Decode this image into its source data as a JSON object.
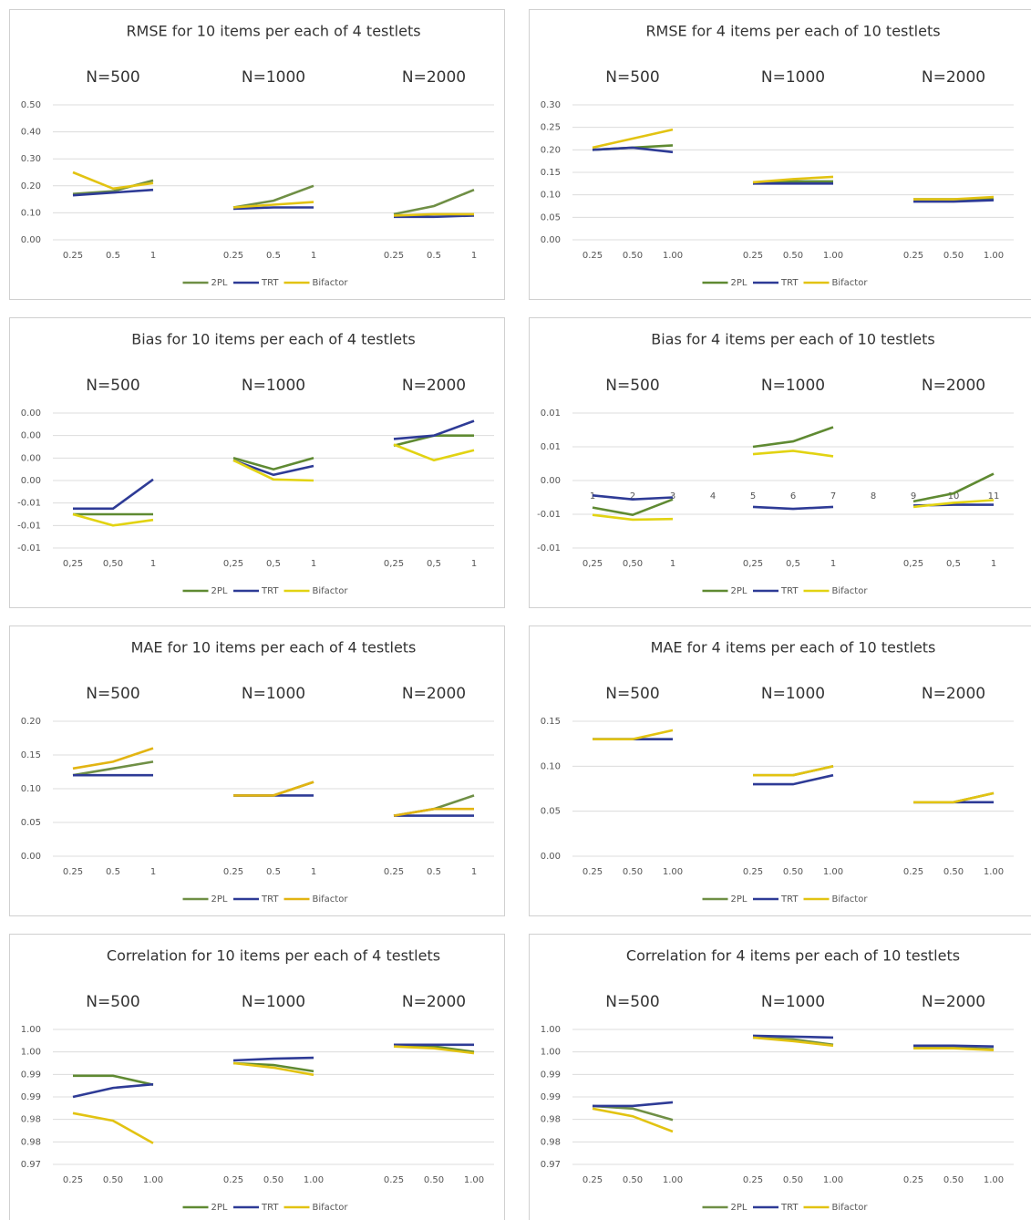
{
  "chart_data": [
    {
      "type": "line",
      "title": "RMSE for 10 items per each of 4 testlets",
      "groups": [
        "N=500",
        "N=1000",
        "N=2000"
      ],
      "categories": [
        "0.25",
        "0.5",
        "1",
        "0.25",
        "0.5",
        "1",
        "0.25",
        "0.5",
        "1"
      ],
      "ylim": [
        0,
        0.5
      ],
      "yticks": [
        {
          "value": 0,
          "label": "0.00"
        },
        {
          "value": 0.1,
          "label": "0.10"
        },
        {
          "value": 0.2,
          "label": "0.20"
        },
        {
          "value": 0.3,
          "label": "0.30"
        },
        {
          "value": 0.4,
          "label": "0.40"
        },
        {
          "value": 0.5,
          "label": "0.50"
        }
      ],
      "grid": true,
      "series": [
        {
          "name": "2PL",
          "color": "#6f8f45",
          "values": [
            0.17,
            0.18,
            0.22,
            0.12,
            0.145,
            0.2,
            0.095,
            0.125,
            0.185
          ]
        },
        {
          "name": "TRT",
          "color": "#2e3b96",
          "values": [
            0.165,
            0.175,
            0.185,
            0.115,
            0.12,
            0.12,
            0.085,
            0.085,
            0.09
          ]
        },
        {
          "name": "Bifactor",
          "color": "#e2c312",
          "values": [
            0.25,
            0.19,
            0.21,
            0.12,
            0.13,
            0.14,
            0.09,
            0.095,
            0.095
          ]
        }
      ]
    },
    {
      "type": "line",
      "title": "RMSE for 4 items per each of 10 testlets",
      "groups": [
        "N=500",
        "N=1000",
        "N=2000"
      ],
      "categories": [
        "0.25",
        "0.50",
        "1.00",
        "0.25",
        "0.50",
        "1.00",
        "0.25",
        "0.50",
        "1.00"
      ],
      "ylim": [
        0,
        0.3
      ],
      "yticks": [
        {
          "value": 0,
          "label": "0.00"
        },
        0.05,
        {
          "value": 0.1,
          "label": "0.10"
        },
        0.15,
        {
          "value": 0.2,
          "label": "0.20"
        },
        0.25,
        {
          "value": 0.3,
          "label": "0.30"
        }
      ],
      "grid": true,
      "series": [
        {
          "name": "2PL",
          "color": "#5f8a32",
          "values": [
            0.2,
            0.205,
            0.21,
            0.125,
            0.13,
            0.13,
            0.09,
            0.09,
            0.09
          ]
        },
        {
          "name": "TRT",
          "color": "#2e3b96",
          "values": [
            0.2,
            0.205,
            0.195,
            0.125,
            0.125,
            0.125,
            0.085,
            0.085,
            0.088
          ]
        },
        {
          "name": "Bifactor",
          "color": "#e2c312",
          "values": [
            0.205,
            0.225,
            0.245,
            0.128,
            0.135,
            0.14,
            0.09,
            0.09,
            0.095
          ]
        }
      ]
    },
    {
      "type": "line",
      "title": "Bias for 10 items per each of 4 testlets",
      "groups": [
        "N=500",
        "N=1000",
        "N=2000"
      ],
      "categories": [
        "0,25",
        "0,50",
        "1",
        "0,25",
        "0,5",
        "1",
        "0,25",
        "0,5",
        "1"
      ],
      "ylim": [
        -0.01,
        0.002
      ],
      "yticks": [
        {
          "value": -0.01,
          "label": "-0.01"
        },
        {
          "value": -0.008,
          "label": "-0.01"
        },
        {
          "value": -0.006,
          "label": "-0.01"
        },
        {
          "value": -0.004,
          "label": "0.00"
        },
        {
          "value": -0.002,
          "label": "0.00"
        },
        {
          "value": 0,
          "label": "0.00"
        },
        {
          "value": 0.002,
          "label": "0.00"
        }
      ],
      "grid": true,
      "series": [
        {
          "name": "2PL",
          "color": "#5f8a32",
          "values": [
            -0.007,
            -0.007,
            -0.007,
            -0.002,
            -0.003,
            -0.002,
            -0.0009,
            0,
            0
          ]
        },
        {
          "name": "TRT",
          "color": "#2e3b96",
          "values": [
            -0.0065,
            -0.0065,
            -0.0039,
            -0.0022,
            -0.0035,
            -0.0027,
            -0.0003,
            0,
            0.0013
          ]
        },
        {
          "name": "Bifactor",
          "color": "#e2d312",
          "values": [
            -0.007,
            -0.008,
            -0.0075,
            -0.0022,
            -0.0039,
            -0.004,
            -0.0008,
            -0.0022,
            -0.0013
          ]
        }
      ]
    },
    {
      "type": "line",
      "title": "Bias for 4 items per each of 10 testlets",
      "groups": [
        "N=500",
        "N=1000",
        "N=2000"
      ],
      "categories": [
        "0,25",
        "0,50",
        "1",
        "0,25",
        "0,5",
        "1",
        "0,25",
        "0,5",
        "1"
      ],
      "index_labels": [
        1,
        2,
        3,
        4,
        5,
        6,
        7,
        8,
        9,
        10,
        11
      ],
      "ylim": [
        -0.01,
        0.01
      ],
      "yticks": [
        -0.01,
        {
          "value": -0.005,
          "label": "-0.01"
        },
        {
          "value": 0,
          "label": "0.00"
        },
        {
          "value": 0.005,
          "label": "0.01"
        },
        0.01
      ],
      "grid": true,
      "series": [
        {
          "name": "2PL",
          "color": "#5f8a32",
          "values": [
            -0.004,
            -0.0051,
            -0.0028,
            0.005,
            0.0058,
            0.0079,
            -0.0031,
            -0.0019,
            0.001
          ]
        },
        {
          "name": "TRT",
          "color": "#2e3b96",
          "values": [
            -0.0022,
            -0.0028,
            -0.0025,
            -0.0039,
            -0.0042,
            -0.0039,
            -0.0037,
            -0.0036,
            -0.0036
          ]
        },
        {
          "name": "Bifactor",
          "color": "#e2d312",
          "values": [
            -0.0051,
            -0.0058,
            -0.0057,
            0.0039,
            0.0044,
            0.0036,
            -0.0039,
            -0.0033,
            -0.0029
          ]
        }
      ]
    },
    {
      "type": "line",
      "title": "MAE for 10 items per each of 4 testlets",
      "groups": [
        "N=500",
        "N=1000",
        "N=2000"
      ],
      "categories": [
        "0.25",
        "0.5",
        "1",
        "0.25",
        "0.5",
        "1",
        "0.25",
        "0.5",
        "1"
      ],
      "ylim": [
        0,
        0.2
      ],
      "yticks": [
        {
          "value": 0,
          "label": "0.00"
        },
        0.05,
        {
          "value": 0.1,
          "label": "0.10"
        },
        0.15,
        {
          "value": 0.2,
          "label": "0.20"
        }
      ],
      "grid": true,
      "series": [
        {
          "name": "2PL",
          "color": "#6f8f45",
          "values": [
            0.12,
            0.13,
            0.14,
            0.09,
            0.09,
            0.11,
            0.06,
            0.07,
            0.09
          ]
        },
        {
          "name": "TRT",
          "color": "#2e3b96",
          "values": [
            0.12,
            0.12,
            0.12,
            0.09,
            0.09,
            0.09,
            0.06,
            0.06,
            0.06
          ]
        },
        {
          "name": "Bifactor",
          "color": "#e2b412",
          "values": [
            0.13,
            0.14,
            0.16,
            0.09,
            0.09,
            0.11,
            0.06,
            0.07,
            0.07
          ]
        }
      ]
    },
    {
      "type": "line",
      "title": "MAE for 4 items per each of 10 testlets",
      "groups": [
        "N=500",
        "N=1000",
        "N=2000"
      ],
      "categories": [
        "0.25",
        "0.50",
        "1.00",
        "0.25",
        "0.50",
        "1.00",
        "0.25",
        "0.50",
        "1.00"
      ],
      "ylim": [
        0,
        0.15
      ],
      "yticks": [
        {
          "value": 0,
          "label": "0.00"
        },
        0.05,
        {
          "value": 0.1,
          "label": "0.10"
        },
        0.15
      ],
      "grid": true,
      "series": [
        {
          "name": "2PL",
          "color": "#6f8f45",
          "values": [
            0.13,
            0.13,
            0.13,
            0.09,
            0.09,
            0.1,
            0.06,
            0.06,
            0.07
          ]
        },
        {
          "name": "TRT",
          "color": "#2e3b96",
          "values": [
            0.13,
            0.13,
            0.13,
            0.08,
            0.08,
            0.09,
            0.06,
            0.06,
            0.06
          ]
        },
        {
          "name": "Bifactor",
          "color": "#e2c312",
          "values": [
            0.13,
            0.13,
            0.14,
            0.09,
            0.09,
            0.1,
            0.06,
            0.06,
            0.07
          ]
        }
      ]
    },
    {
      "type": "line",
      "title": "Correlation for 10 items per each of 4 testlets",
      "groups": [
        "N=500",
        "N=1000",
        "N=2000"
      ],
      "categories": [
        "0.25",
        "0.50",
        "1.00",
        "0.25",
        "0.50",
        "1.00",
        "0.25",
        "0.50",
        "1.00"
      ],
      "ylim": [
        0.97,
        1.0
      ],
      "yticks": [
        0.97,
        {
          "value": 0.975,
          "label": "0.98"
        },
        0.98,
        {
          "value": 0.985,
          "label": "0.99"
        },
        0.99,
        {
          "value": 0.995,
          "label": "1.00"
        },
        {
          "value": 1.0,
          "label": "1.00"
        }
      ],
      "grid": true,
      "series": [
        {
          "name": "2PL",
          "color": "#5f8a32",
          "values": [
            0.9897,
            0.9897,
            0.9877,
            0.9925,
            0.9921,
            0.9907,
            0.9962,
            0.9962,
            0.995
          ]
        },
        {
          "name": "TRT",
          "color": "#2e3b96",
          "values": [
            0.985,
            0.987,
            0.9878,
            0.9931,
            0.9935,
            0.9937,
            0.9966,
            0.9966,
            0.9966
          ]
        },
        {
          "name": "Bifactor",
          "color": "#e2c312",
          "values": [
            0.9814,
            0.9797,
            0.9747,
            0.9925,
            0.9915,
            0.9899,
            0.9962,
            0.9958,
            0.9947
          ]
        }
      ]
    },
    {
      "type": "line",
      "title": "Correlation for 4 items per each of 10 testlets",
      "groups": [
        "N=500",
        "N=1000",
        "N=2000"
      ],
      "categories": [
        "0.25",
        "0.50",
        "1.00",
        "0.25",
        "0.50",
        "1.00",
        "0.25",
        "0.50",
        "1.00"
      ],
      "ylim": [
        0.97,
        1.0
      ],
      "yticks": [
        0.97,
        {
          "value": 0.975,
          "label": "0.98"
        },
        0.98,
        {
          "value": 0.985,
          "label": "0.99"
        },
        0.99,
        {
          "value": 0.995,
          "label": "1.00"
        },
        {
          "value": 1.0,
          "label": "1.00"
        }
      ],
      "grid": true,
      "series": [
        {
          "name": "2PL",
          "color": "#6f8f45",
          "values": [
            0.983,
            0.9824,
            0.9799,
            0.9982,
            0.9978,
            0.9966,
            0.996,
            0.996,
            0.9956
          ]
        },
        {
          "name": "TRT",
          "color": "#2e3b96",
          "values": [
            0.983,
            0.983,
            0.9838,
            0.9986,
            0.9984,
            0.9982,
            0.9964,
            0.9964,
            0.9962
          ]
        },
        {
          "name": "Bifactor",
          "color": "#e2c312",
          "values": [
            0.9824,
            0.9807,
            0.9773,
            0.9982,
            0.9974,
            0.9964,
            0.9958,
            0.9958,
            0.9954
          ]
        }
      ]
    }
  ]
}
